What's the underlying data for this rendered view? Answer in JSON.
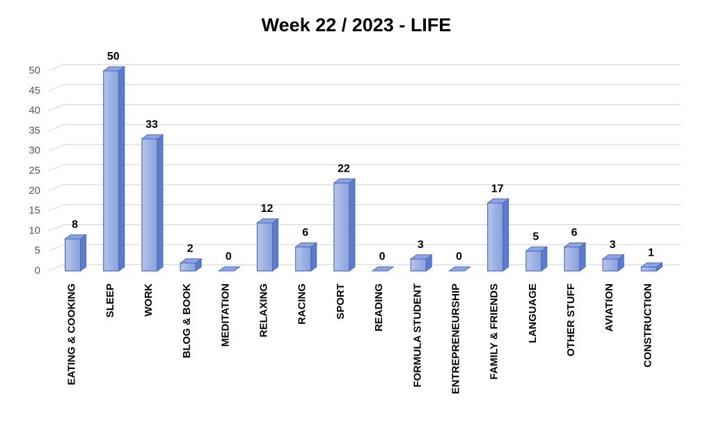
{
  "chart_data": {
    "type": "bar",
    "title": "Week 22 / 2023 - LIFE",
    "categories": [
      "EATING & COOKING",
      "SLEEP",
      "WORK",
      "BLOG & BOOK",
      "MEDITATION",
      "RELAXING",
      "RACING",
      "SPORT",
      "READING",
      "FORMULA STUDENT",
      "ENTREPRENEURSHIP",
      "FAMILY & FRIENDS",
      "LANGUAGE",
      "OTHER STUFF",
      "AVIATION",
      "CONSTRUCTION"
    ],
    "values": [
      8,
      50,
      33,
      2,
      0,
      12,
      6,
      22,
      0,
      3,
      0,
      17,
      5,
      6,
      3,
      1
    ],
    "color": "#9fb2e6",
    "ylim": [
      0,
      50
    ],
    "yticks": [
      0,
      5,
      10,
      15,
      20,
      25,
      30,
      35,
      40,
      45,
      50
    ],
    "grid": true
  }
}
